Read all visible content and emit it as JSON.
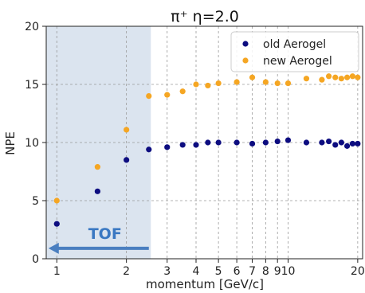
{
  "chart_data": {
    "type": "scatter",
    "title": "π⁺   η=2.0",
    "xlabel": "momentum [GeV/c]",
    "ylabel": "NPE",
    "xscale": "log",
    "xlim": [
      0.9,
      21
    ],
    "ylim": [
      0,
      20
    ],
    "grid": true,
    "legend_position": "top-right",
    "x_tick_labels": [
      "1",
      "2",
      "3",
      "4",
      "5",
      "6",
      "7",
      "8",
      "9",
      "10",
      "20"
    ],
    "y_tick_labels": [
      "0",
      "5",
      "10",
      "15",
      "20"
    ],
    "series": [
      {
        "name": "old Aerogel",
        "color": "#0d0d80",
        "x": [
          1.0,
          1.5,
          2.0,
          2.5,
          3.0,
          3.5,
          4.0,
          4.5,
          5.0,
          6.0,
          7.0,
          8.0,
          9.0,
          10.0,
          12.0,
          14.0,
          15.0,
          16.0,
          17.0,
          18.0,
          19.0,
          20.0
        ],
        "y": [
          3.0,
          5.8,
          8.5,
          9.4,
          9.6,
          9.8,
          9.8,
          10.0,
          10.0,
          10.0,
          9.9,
          10.0,
          10.1,
          10.2,
          10.0,
          10.0,
          10.1,
          9.8,
          10.0,
          9.7,
          9.9,
          9.9
        ]
      },
      {
        "name": "new Aerogel",
        "color": "#f5a623",
        "x": [
          1.0,
          1.5,
          2.0,
          2.5,
          3.0,
          3.5,
          4.0,
          4.5,
          5.0,
          6.0,
          7.0,
          8.0,
          9.0,
          10.0,
          12.0,
          14.0,
          15.0,
          16.0,
          17.0,
          18.0,
          19.0,
          20.0
        ],
        "y": [
          5.0,
          7.9,
          11.1,
          14.0,
          14.1,
          14.4,
          15.0,
          14.9,
          15.1,
          15.2,
          15.6,
          15.2,
          15.1,
          15.1,
          15.5,
          15.4,
          15.7,
          15.6,
          15.5,
          15.6,
          15.7,
          15.6
        ]
      }
    ],
    "annotation": {
      "text": "TOF",
      "shaded_region_x": [
        0.9,
        2.55
      ],
      "shaded_color": "#dbe4ef",
      "arrow_color": "#4a7fc0",
      "arrow_at_y": 0.9,
      "arrow_from_x": 2.5,
      "arrow_to_x": 0.92
    }
  }
}
